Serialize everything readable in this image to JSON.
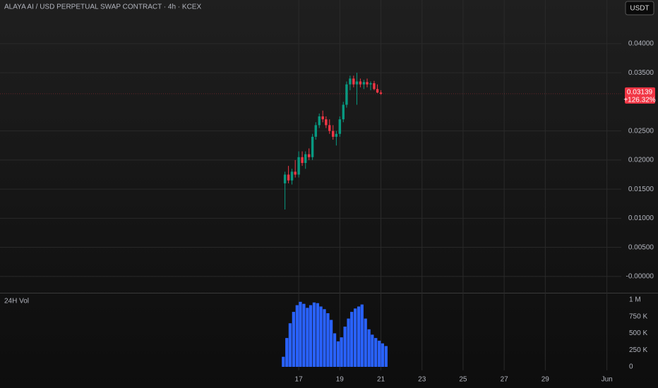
{
  "chart_data": {
    "type": "candlestick",
    "title": "ALAYA AI / USD PERPETUAL SWAP CONTRACT · 4h · KCEX",
    "currency": "USDT",
    "up_color": "#089981",
    "down_color": "#f23645",
    "last_price": 0.03139,
    "change_label": "+126.32%",
    "xlim": [
      2.46,
      32.7
    ],
    "xticks": [
      17,
      19,
      21,
      23,
      25,
      27,
      29,
      {
        "value": 32,
        "label": "Jun"
      }
    ],
    "ylim": [
      -0.0028,
      0.0475
    ],
    "yticks": [
      {
        "value": 0.04,
        "label": "0.04000"
      },
      {
        "value": 0.035,
        "label": "0.03500"
      },
      {
        "value": 0.025,
        "label": "0.02500"
      },
      {
        "value": 0.02,
        "label": "0.02000"
      },
      {
        "value": 0.015,
        "label": "0.01500"
      },
      {
        "value": 0.01,
        "label": "0.01000"
      },
      {
        "value": 0.005,
        "label": "0.00500"
      },
      {
        "value": 0,
        "label": "-0.00000"
      }
    ],
    "grid": true,
    "x": [
      16.33,
      16.5,
      16.67,
      16.83,
      17.0,
      17.17,
      17.33,
      17.5,
      17.67,
      17.83,
      18.0,
      18.17,
      18.33,
      18.5,
      18.67,
      18.83,
      19.0,
      19.17,
      19.33,
      19.5,
      19.67,
      19.83,
      20.0,
      20.17,
      20.33,
      20.5,
      20.67,
      20.83,
      21.0
    ],
    "open": [
      0.016,
      0.0175,
      0.0165,
      0.018,
      0.0175,
      0.0205,
      0.0195,
      0.021,
      0.0205,
      0.024,
      0.026,
      0.0275,
      0.027,
      0.026,
      0.025,
      0.024,
      0.0245,
      0.027,
      0.0295,
      0.033,
      0.034,
      0.033,
      0.0335,
      0.033,
      0.0334,
      0.033,
      0.0332,
      0.0322,
      0.0316
    ],
    "high": [
      0.018,
      0.019,
      0.0185,
      0.02,
      0.0215,
      0.0215,
      0.0215,
      0.022,
      0.0245,
      0.0265,
      0.028,
      0.0285,
      0.0275,
      0.027,
      0.026,
      0.025,
      0.0275,
      0.03,
      0.0335,
      0.0345,
      0.0345,
      0.035,
      0.034,
      0.0338,
      0.034,
      0.0335,
      0.0336,
      0.033,
      0.032
    ],
    "low": [
      0.0115,
      0.016,
      0.0158,
      0.017,
      0.017,
      0.019,
      0.0185,
      0.02,
      0.02,
      0.0235,
      0.0255,
      0.0265,
      0.0255,
      0.0245,
      0.0235,
      0.0225,
      0.024,
      0.0265,
      0.029,
      0.032,
      0.0325,
      0.0295,
      0.0325,
      0.0322,
      0.0325,
      0.032,
      0.032,
      0.0315,
      0.0312
    ],
    "close": [
      0.0175,
      0.0165,
      0.018,
      0.0175,
      0.0205,
      0.0195,
      0.021,
      0.0205,
      0.024,
      0.026,
      0.0275,
      0.027,
      0.026,
      0.025,
      0.024,
      0.0245,
      0.027,
      0.0295,
      0.033,
      0.034,
      0.033,
      0.0335,
      0.033,
      0.0334,
      0.033,
      0.0332,
      0.0322,
      0.0316,
      0.03139
    ],
    "volume": {
      "title": "24H Vol",
      "color": "#2962ff",
      "ylim": [
        0,
        1105000
      ],
      "yticks": [
        {
          "value": 1000000,
          "label": "1 M"
        },
        {
          "value": 750000,
          "label": "750 K"
        },
        {
          "value": 500000,
          "label": "500 K"
        },
        {
          "value": 250000,
          "label": "250 K"
        },
        0
      ],
      "x": [
        16.25,
        16.42,
        16.58,
        16.75,
        16.92,
        17.08,
        17.25,
        17.42,
        17.58,
        17.75,
        17.92,
        18.08,
        18.25,
        18.42,
        18.58,
        18.75,
        18.92,
        19.08,
        19.25,
        19.42,
        19.58,
        19.75,
        19.92,
        20.08,
        20.25,
        20.42,
        20.58,
        20.75,
        20.92,
        21.08,
        21.25
      ],
      "values": [
        150000,
        430000,
        650000,
        820000,
        920000,
        970000,
        940000,
        880000,
        920000,
        960000,
        950000,
        900000,
        860000,
        800000,
        700000,
        500000,
        380000,
        440000,
        600000,
        720000,
        820000,
        870000,
        900000,
        930000,
        720000,
        560000,
        480000,
        430000,
        390000,
        350000,
        310000
      ]
    }
  }
}
